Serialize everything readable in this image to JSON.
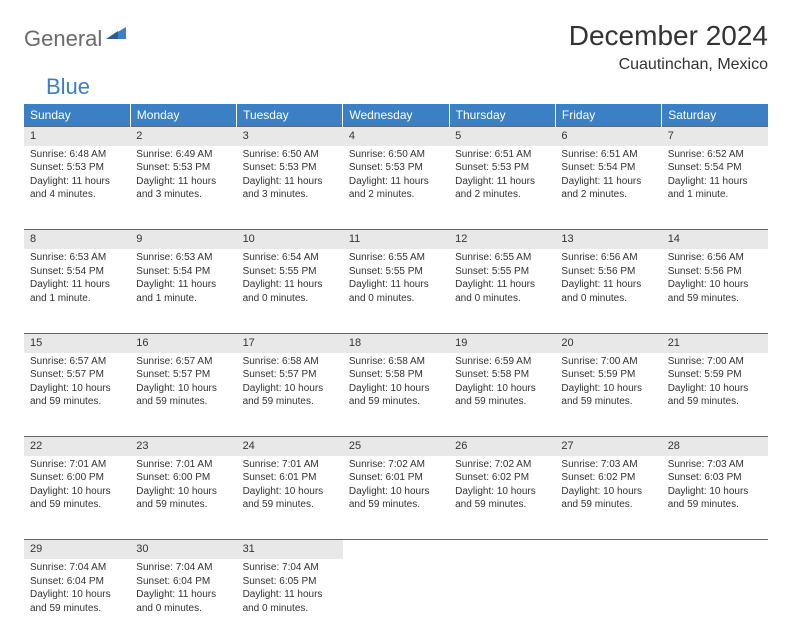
{
  "logo": {
    "general": "General",
    "blue": "Blue"
  },
  "title": "December 2024",
  "location": "Cuautinchan, Mexico",
  "colors": {
    "header_bg": "#3b7fc4",
    "header_text": "#ffffff",
    "daynum_bg": "#e8e8e8",
    "daynum_border": "#666666",
    "text": "#333333",
    "logo_gray": "#6b6b6b",
    "logo_blue": "#3b7fc4"
  },
  "weekdays": [
    "Sunday",
    "Monday",
    "Tuesday",
    "Wednesday",
    "Thursday",
    "Friday",
    "Saturday"
  ],
  "weeks": [
    [
      {
        "n": "1",
        "sr": "Sunrise: 6:48 AM",
        "ss": "Sunset: 5:53 PM",
        "dl": "Daylight: 11 hours and 4 minutes."
      },
      {
        "n": "2",
        "sr": "Sunrise: 6:49 AM",
        "ss": "Sunset: 5:53 PM",
        "dl": "Daylight: 11 hours and 3 minutes."
      },
      {
        "n": "3",
        "sr": "Sunrise: 6:50 AM",
        "ss": "Sunset: 5:53 PM",
        "dl": "Daylight: 11 hours and 3 minutes."
      },
      {
        "n": "4",
        "sr": "Sunrise: 6:50 AM",
        "ss": "Sunset: 5:53 PM",
        "dl": "Daylight: 11 hours and 2 minutes."
      },
      {
        "n": "5",
        "sr": "Sunrise: 6:51 AM",
        "ss": "Sunset: 5:53 PM",
        "dl": "Daylight: 11 hours and 2 minutes."
      },
      {
        "n": "6",
        "sr": "Sunrise: 6:51 AM",
        "ss": "Sunset: 5:54 PM",
        "dl": "Daylight: 11 hours and 2 minutes."
      },
      {
        "n": "7",
        "sr": "Sunrise: 6:52 AM",
        "ss": "Sunset: 5:54 PM",
        "dl": "Daylight: 11 hours and 1 minute."
      }
    ],
    [
      {
        "n": "8",
        "sr": "Sunrise: 6:53 AM",
        "ss": "Sunset: 5:54 PM",
        "dl": "Daylight: 11 hours and 1 minute."
      },
      {
        "n": "9",
        "sr": "Sunrise: 6:53 AM",
        "ss": "Sunset: 5:54 PM",
        "dl": "Daylight: 11 hours and 1 minute."
      },
      {
        "n": "10",
        "sr": "Sunrise: 6:54 AM",
        "ss": "Sunset: 5:55 PM",
        "dl": "Daylight: 11 hours and 0 minutes."
      },
      {
        "n": "11",
        "sr": "Sunrise: 6:55 AM",
        "ss": "Sunset: 5:55 PM",
        "dl": "Daylight: 11 hours and 0 minutes."
      },
      {
        "n": "12",
        "sr": "Sunrise: 6:55 AM",
        "ss": "Sunset: 5:55 PM",
        "dl": "Daylight: 11 hours and 0 minutes."
      },
      {
        "n": "13",
        "sr": "Sunrise: 6:56 AM",
        "ss": "Sunset: 5:56 PM",
        "dl": "Daylight: 11 hours and 0 minutes."
      },
      {
        "n": "14",
        "sr": "Sunrise: 6:56 AM",
        "ss": "Sunset: 5:56 PM",
        "dl": "Daylight: 10 hours and 59 minutes."
      }
    ],
    [
      {
        "n": "15",
        "sr": "Sunrise: 6:57 AM",
        "ss": "Sunset: 5:57 PM",
        "dl": "Daylight: 10 hours and 59 minutes."
      },
      {
        "n": "16",
        "sr": "Sunrise: 6:57 AM",
        "ss": "Sunset: 5:57 PM",
        "dl": "Daylight: 10 hours and 59 minutes."
      },
      {
        "n": "17",
        "sr": "Sunrise: 6:58 AM",
        "ss": "Sunset: 5:57 PM",
        "dl": "Daylight: 10 hours and 59 minutes."
      },
      {
        "n": "18",
        "sr": "Sunrise: 6:58 AM",
        "ss": "Sunset: 5:58 PM",
        "dl": "Daylight: 10 hours and 59 minutes."
      },
      {
        "n": "19",
        "sr": "Sunrise: 6:59 AM",
        "ss": "Sunset: 5:58 PM",
        "dl": "Daylight: 10 hours and 59 minutes."
      },
      {
        "n": "20",
        "sr": "Sunrise: 7:00 AM",
        "ss": "Sunset: 5:59 PM",
        "dl": "Daylight: 10 hours and 59 minutes."
      },
      {
        "n": "21",
        "sr": "Sunrise: 7:00 AM",
        "ss": "Sunset: 5:59 PM",
        "dl": "Daylight: 10 hours and 59 minutes."
      }
    ],
    [
      {
        "n": "22",
        "sr": "Sunrise: 7:01 AM",
        "ss": "Sunset: 6:00 PM",
        "dl": "Daylight: 10 hours and 59 minutes."
      },
      {
        "n": "23",
        "sr": "Sunrise: 7:01 AM",
        "ss": "Sunset: 6:00 PM",
        "dl": "Daylight: 10 hours and 59 minutes."
      },
      {
        "n": "24",
        "sr": "Sunrise: 7:01 AM",
        "ss": "Sunset: 6:01 PM",
        "dl": "Daylight: 10 hours and 59 minutes."
      },
      {
        "n": "25",
        "sr": "Sunrise: 7:02 AM",
        "ss": "Sunset: 6:01 PM",
        "dl": "Daylight: 10 hours and 59 minutes."
      },
      {
        "n": "26",
        "sr": "Sunrise: 7:02 AM",
        "ss": "Sunset: 6:02 PM",
        "dl": "Daylight: 10 hours and 59 minutes."
      },
      {
        "n": "27",
        "sr": "Sunrise: 7:03 AM",
        "ss": "Sunset: 6:02 PM",
        "dl": "Daylight: 10 hours and 59 minutes."
      },
      {
        "n": "28",
        "sr": "Sunrise: 7:03 AM",
        "ss": "Sunset: 6:03 PM",
        "dl": "Daylight: 10 hours and 59 minutes."
      }
    ],
    [
      {
        "n": "29",
        "sr": "Sunrise: 7:04 AM",
        "ss": "Sunset: 6:04 PM",
        "dl": "Daylight: 10 hours and 59 minutes."
      },
      {
        "n": "30",
        "sr": "Sunrise: 7:04 AM",
        "ss": "Sunset: 6:04 PM",
        "dl": "Daylight: 11 hours and 0 minutes."
      },
      {
        "n": "31",
        "sr": "Sunrise: 7:04 AM",
        "ss": "Sunset: 6:05 PM",
        "dl": "Daylight: 11 hours and 0 minutes."
      },
      null,
      null,
      null,
      null
    ]
  ]
}
